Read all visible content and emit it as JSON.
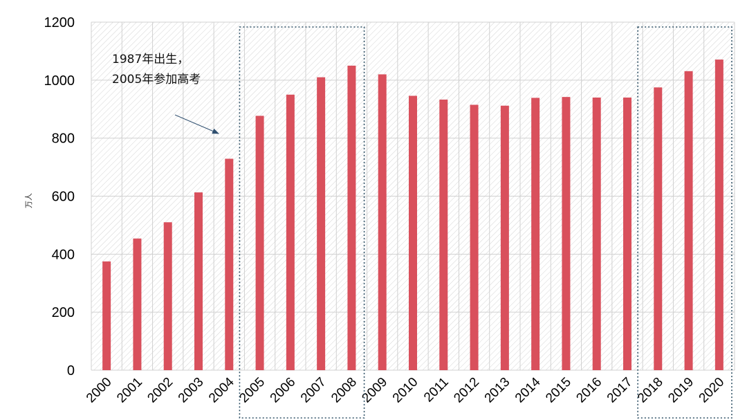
{
  "chart_data": {
    "type": "bar",
    "categories": [
      "2000",
      "2001",
      "2002",
      "2003",
      "2004",
      "2005",
      "2006",
      "2007",
      "2008",
      "2009",
      "2010",
      "2011",
      "2012",
      "2013",
      "2014",
      "2015",
      "2016",
      "2017",
      "2018",
      "2019",
      "2020"
    ],
    "values": [
      375,
      454,
      510,
      613,
      729,
      877,
      950,
      1010,
      1050,
      1020,
      946,
      933,
      915,
      912,
      939,
      942,
      940,
      940,
      975,
      1031,
      1071
    ],
    "title": "",
    "xlabel": "",
    "ylabel": "万人",
    "ylim": [
      0,
      1200
    ],
    "yticks": [
      "0",
      "200",
      "400",
      "600",
      "800",
      "1000",
      "1200"
    ],
    "grid": true,
    "bar_color": "#d9505c",
    "highlight_groups": [
      {
        "from": "2005",
        "to": "2008"
      },
      {
        "from": "2018",
        "to": "2020"
      }
    ],
    "annotation": {
      "lines": [
        "1987年出生，",
        "2005年参加高考"
      ],
      "target_category": "2004"
    }
  }
}
